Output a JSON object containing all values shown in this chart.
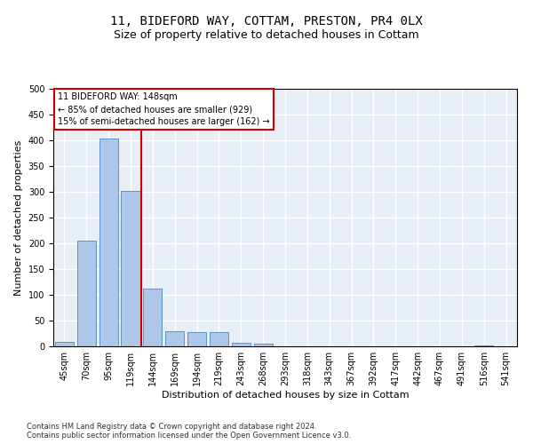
{
  "title": "11, BIDEFORD WAY, COTTAM, PRESTON, PR4 0LX",
  "subtitle": "Size of property relative to detached houses in Cottam",
  "xlabel": "Distribution of detached houses by size in Cottam",
  "ylabel": "Number of detached properties",
  "bar_categories": [
    "45sqm",
    "70sqm",
    "95sqm",
    "119sqm",
    "144sqm",
    "169sqm",
    "194sqm",
    "219sqm",
    "243sqm",
    "268sqm",
    "293sqm",
    "318sqm",
    "343sqm",
    "367sqm",
    "392sqm",
    "417sqm",
    "442sqm",
    "467sqm",
    "491sqm",
    "516sqm",
    "541sqm"
  ],
  "bar_values": [
    8,
    205,
    403,
    302,
    112,
    30,
    27,
    27,
    7,
    5,
    0,
    0,
    0,
    0,
    0,
    0,
    0,
    0,
    0,
    1,
    0
  ],
  "bar_color": "#aec6e8",
  "bar_edge_color": "#5a96c8",
  "property_line_label": "11 BIDEFORD WAY: 148sqm",
  "annotation_line1": "← 85% of detached houses are smaller (929)",
  "annotation_line2": "15% of semi-detached houses are larger (162) →",
  "annotation_box_color": "#cc0000",
  "vline_color": "#cc0000",
  "vline_x": 3.5,
  "ylim": [
    0,
    500
  ],
  "background_color": "#e8eef5",
  "grid_color": "#ffffff",
  "footer_line1": "Contains HM Land Registry data © Crown copyright and database right 2024.",
  "footer_line2": "Contains public sector information licensed under the Open Government Licence v3.0.",
  "title_fontsize": 10,
  "subtitle_fontsize": 9,
  "ylabel_fontsize": 8,
  "xlabel_fontsize": 8,
  "tick_fontsize": 7,
  "annotation_fontsize": 7,
  "footer_fontsize": 6
}
